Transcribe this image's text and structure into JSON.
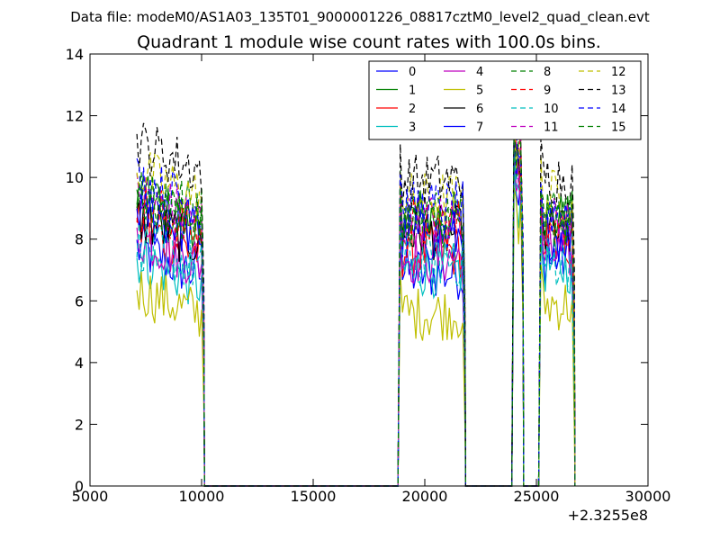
{
  "figure": {
    "suptitle": "Data file: modeM0/AS1A03_135T01_9000001226_08817cztM0_level2_quad_clean.evt"
  },
  "chart_data": {
    "type": "line",
    "title": "Quadrant 1 module wise count rates with 100.0s bins.",
    "xlabel": "",
    "ylabel": "",
    "x_offset_label": "+2.3255e8",
    "xlim": [
      5000,
      30000
    ],
    "ylim": [
      0,
      14
    ],
    "xticks": [
      "5000",
      "10000",
      "15000",
      "20000",
      "25000",
      "30000"
    ],
    "yticks": [
      "0",
      "2",
      "4",
      "6",
      "8",
      "10",
      "12",
      "14"
    ],
    "grid": false,
    "legend_location": "upper-right",
    "legend_columns": 4,
    "bin_seconds": 100,
    "segments": [
      {
        "start": 7100,
        "end": 10100
      },
      {
        "start": 18900,
        "end": 21800
      },
      {
        "start": 24000,
        "end": 24400
      },
      {
        "start": 25200,
        "end": 26700
      }
    ],
    "series": [
      {
        "name": "0",
        "color": "#0000ff",
        "dash": "solid",
        "segment_levels": [
          7.2,
          6.9,
          9.6,
          7.4
        ]
      },
      {
        "name": "1",
        "color": "#008000",
        "dash": "solid",
        "segment_levels": [
          8.8,
          8.7,
          10.4,
          8.7
        ]
      },
      {
        "name": "2",
        "color": "#ff0000",
        "dash": "solid",
        "segment_levels": [
          7.9,
          7.6,
          9.9,
          7.9
        ]
      },
      {
        "name": "3",
        "color": "#00bfbf",
        "dash": "solid",
        "segment_levels": [
          6.9,
          7.0,
          9.2,
          7.1
        ]
      },
      {
        "name": "4",
        "color": "#bf00bf",
        "dash": "solid",
        "segment_levels": [
          7.6,
          7.4,
          9.8,
          7.5
        ]
      },
      {
        "name": "5",
        "color": "#bfbf00",
        "dash": "solid",
        "segment_levels": [
          5.9,
          5.6,
          8.6,
          5.9
        ]
      },
      {
        "name": "6",
        "color": "#000000",
        "dash": "solid",
        "segment_levels": [
          8.2,
          8.2,
          10.3,
          8.2
        ]
      },
      {
        "name": "7",
        "color": "#0000ff",
        "dash": "solid",
        "segment_levels": [
          8.5,
          8.1,
          10.1,
          8.1
        ]
      },
      {
        "name": "8",
        "color": "#008000",
        "dash": "dashed",
        "segment_levels": [
          9.3,
          8.9,
          10.9,
          8.9
        ]
      },
      {
        "name": "9",
        "color": "#ff0000",
        "dash": "dashed",
        "segment_levels": [
          8.6,
          8.5,
          10.6,
          8.5
        ]
      },
      {
        "name": "10",
        "color": "#00bfbf",
        "dash": "dashed",
        "segment_levels": [
          7.4,
          7.3,
          9.6,
          7.3
        ]
      },
      {
        "name": "11",
        "color": "#bf00bf",
        "dash": "dashed",
        "segment_levels": [
          9.0,
          8.6,
          10.5,
          8.5
        ]
      },
      {
        "name": "12",
        "color": "#bfbf00",
        "dash": "dashed",
        "segment_levels": [
          9.7,
          9.3,
          11.0,
          9.4
        ]
      },
      {
        "name": "13",
        "color": "#000000",
        "dash": "dashed",
        "segment_levels": [
          10.6,
          9.9,
          11.7,
          10.0
        ]
      },
      {
        "name": "14",
        "color": "#0000ff",
        "dash": "dashed",
        "segment_levels": [
          9.4,
          9.0,
          11.0,
          8.9
        ]
      },
      {
        "name": "15",
        "color": "#008000",
        "dash": "dashed",
        "segment_levels": [
          8.9,
          8.6,
          10.7,
          8.6
        ]
      }
    ]
  }
}
